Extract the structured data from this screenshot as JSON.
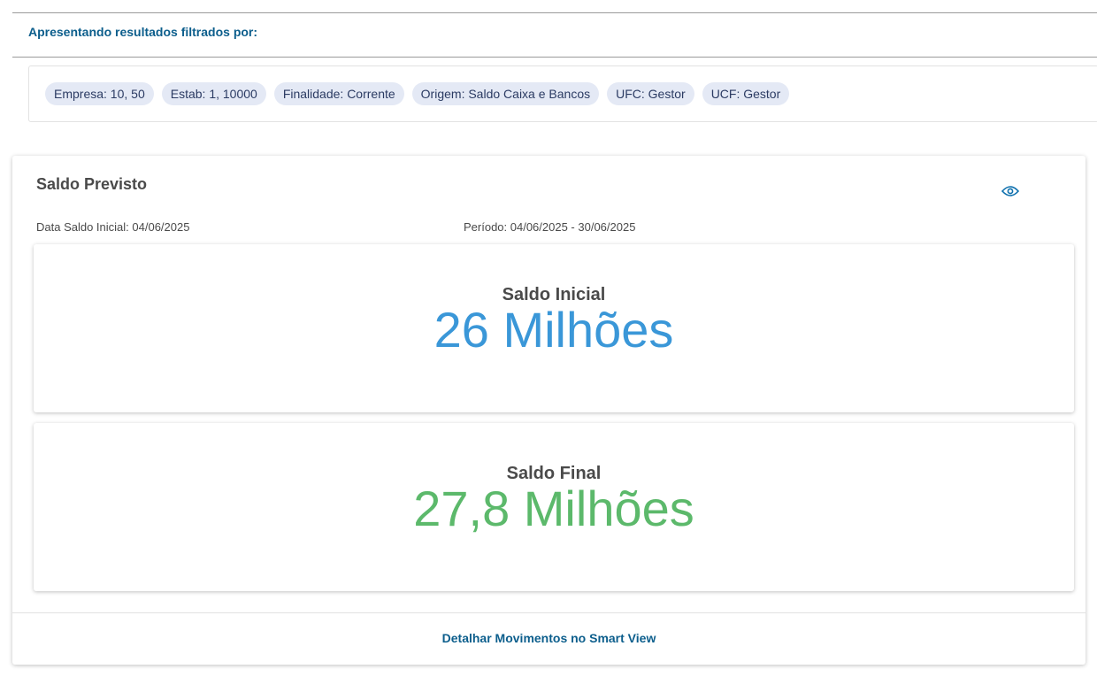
{
  "filters": {
    "title": "Apresentando resultados filtrados por:",
    "chips": [
      "Empresa: 10, 50",
      "Estab: 1, 10000",
      "Finalidade: Corrente",
      "Origem: Saldo Caixa e Bancos",
      "UFC: Gestor",
      "UCF: Gestor"
    ]
  },
  "card": {
    "title": "Saldo Previsto",
    "eye_icon": "eye-icon",
    "data_saldo_inicial": "Data Saldo Inicial: 04/06/2025",
    "periodo": "Período: 04/06/2025 - 30/06/2025",
    "saldo_inicial": {
      "label": "Saldo Inicial",
      "value": "26 Milhões",
      "color": "#3a97d8"
    },
    "saldo_final": {
      "label": "Saldo Final",
      "value": "27,8 Milhões",
      "color": "#5cb96b"
    },
    "link": "Detalhar Movimentos no Smart View"
  }
}
